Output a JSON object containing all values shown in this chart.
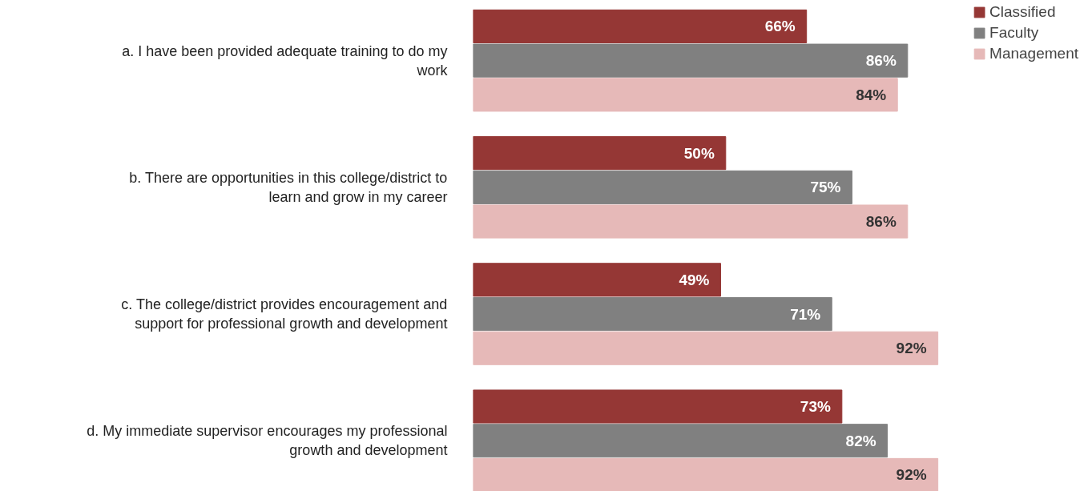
{
  "chart_data": {
    "type": "bar",
    "orientation": "horizontal",
    "categories": [
      "a. I have been provided adequate training to do my work",
      "b. There are opportunities in this college/district to learn and grow in my career",
      "c. The college/district provides encouragement and support for professional growth and development",
      "d. My immediate supervisor encourages my professional growth and development"
    ],
    "series": [
      {
        "name": "Classified",
        "color": "#953735",
        "values": [
          66,
          50,
          49,
          73
        ],
        "value_labels": [
          "66%",
          "50%",
          "49%",
          "73%"
        ]
      },
      {
        "name": "Faculty",
        "color": "#808080",
        "values": [
          86,
          75,
          71,
          82
        ],
        "value_labels": [
          "86%",
          "75%",
          "71%",
          "82%"
        ]
      },
      {
        "name": "Management",
        "color": "#e6b9b8",
        "values": [
          84,
          86,
          92,
          92
        ],
        "value_labels": [
          "84%",
          "86%",
          "92%",
          "92%"
        ]
      }
    ],
    "legend": "top right",
    "grid": false
  }
}
